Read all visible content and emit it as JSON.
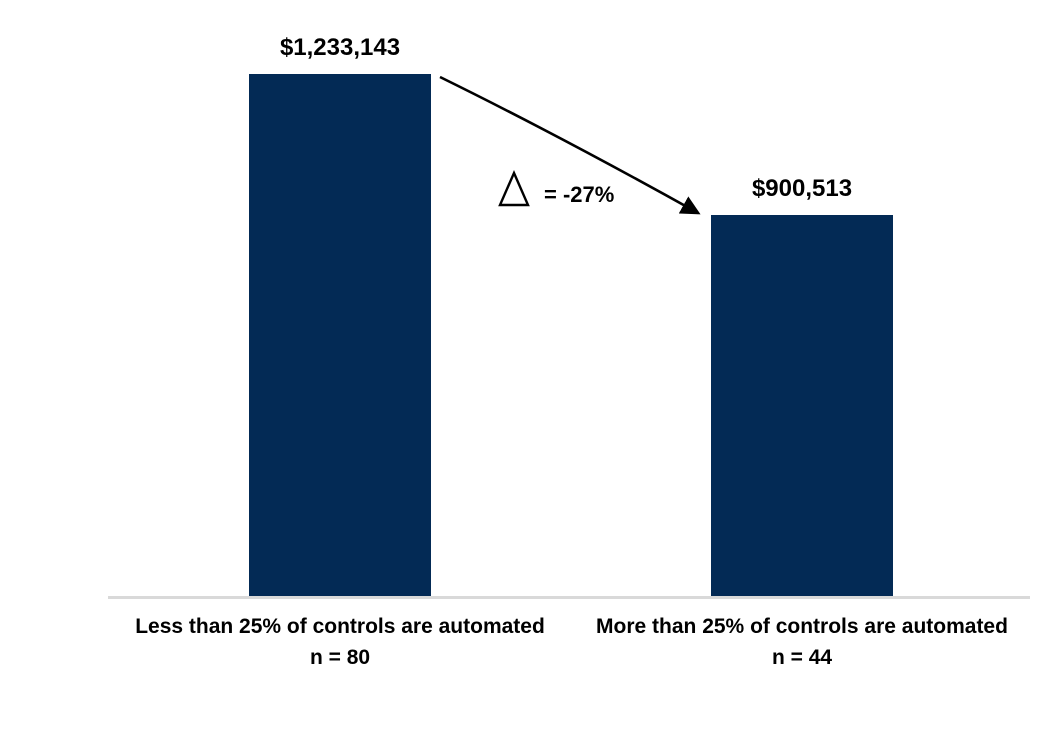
{
  "chart_data": {
    "type": "bar",
    "categories": [
      "Less than 25% of controls are automated",
      "More than 25% of controls are automated"
    ],
    "values": [
      1233143,
      900513
    ],
    "value_labels": [
      "$1,233,143",
      "$900,513"
    ],
    "n_labels": [
      "n = 80",
      "n = 44"
    ],
    "sample_sizes": [
      80,
      44
    ],
    "annotation": {
      "symbol": "delta-triangle",
      "label": "= -27%",
      "percent_change": -27
    },
    "bar_color": "#032A55",
    "axis_line_color": "#D9D9D9",
    "text_color": "#000000",
    "ylim": [
      0,
      1233143
    ],
    "grid": false,
    "legend": false
  }
}
